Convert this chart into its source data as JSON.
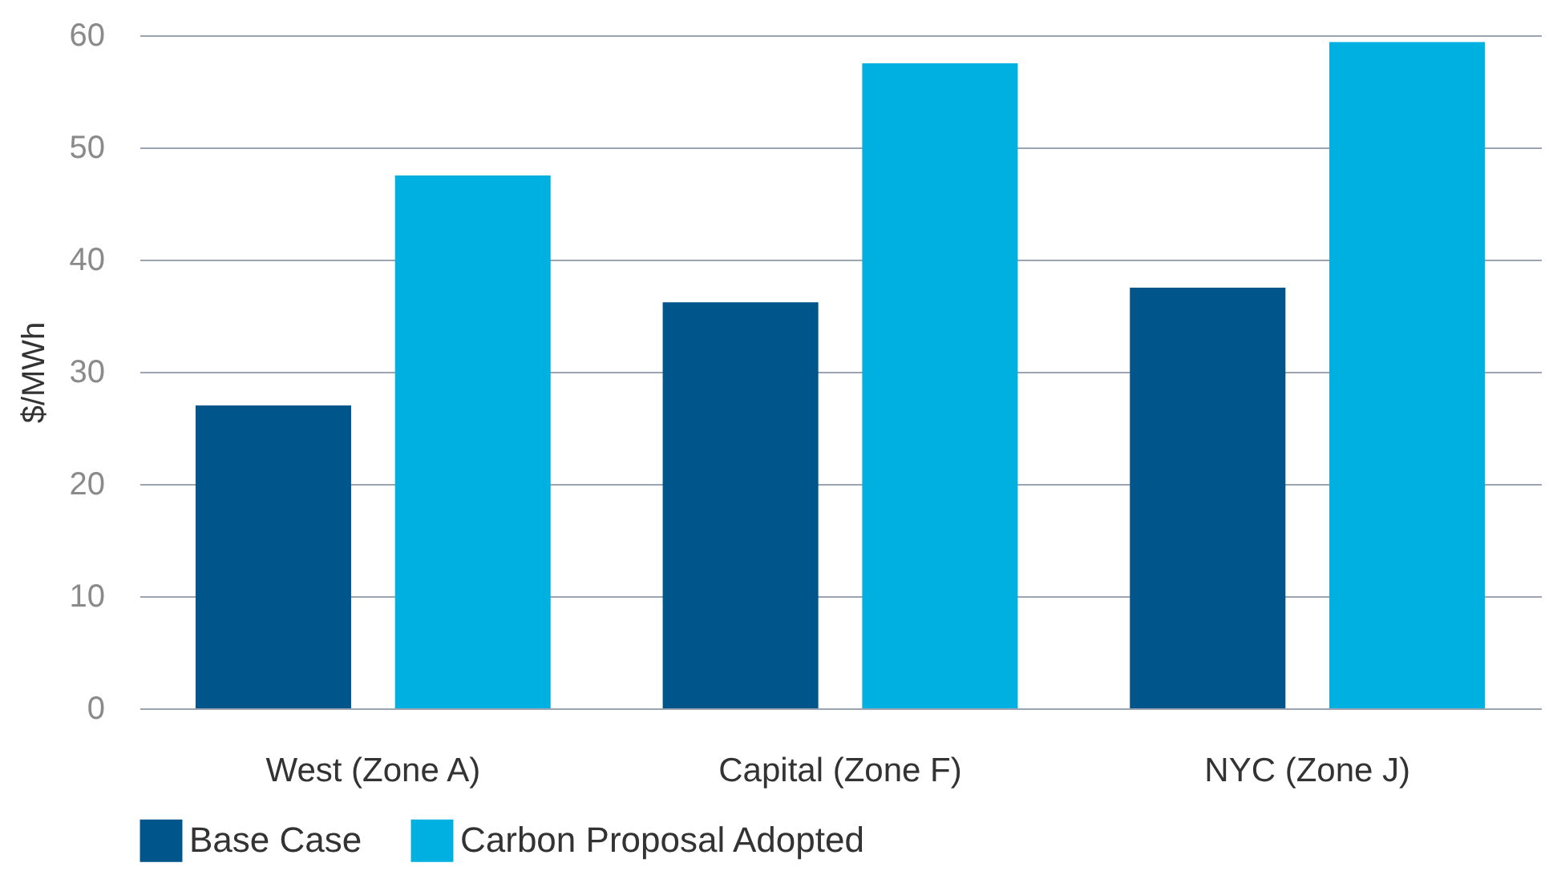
{
  "chart_data": {
    "type": "bar",
    "ylabel": "$/MWh",
    "categories": [
      "West (Zone A)",
      "Capital (Zone F)",
      "NYC (Zone J)"
    ],
    "series": [
      {
        "name": "Base Case",
        "color": "#00558a",
        "values": [
          27,
          36.2,
          37.5
        ]
      },
      {
        "name": "Carbon Proposal Adopted",
        "color": "#00b0e0",
        "values": [
          47.5,
          57.5,
          59.4
        ]
      }
    ],
    "ylim": [
      0,
      60
    ],
    "yticks": [
      0,
      10,
      20,
      30,
      40,
      50,
      60
    ],
    "grid": "y",
    "legend": "bottom"
  }
}
